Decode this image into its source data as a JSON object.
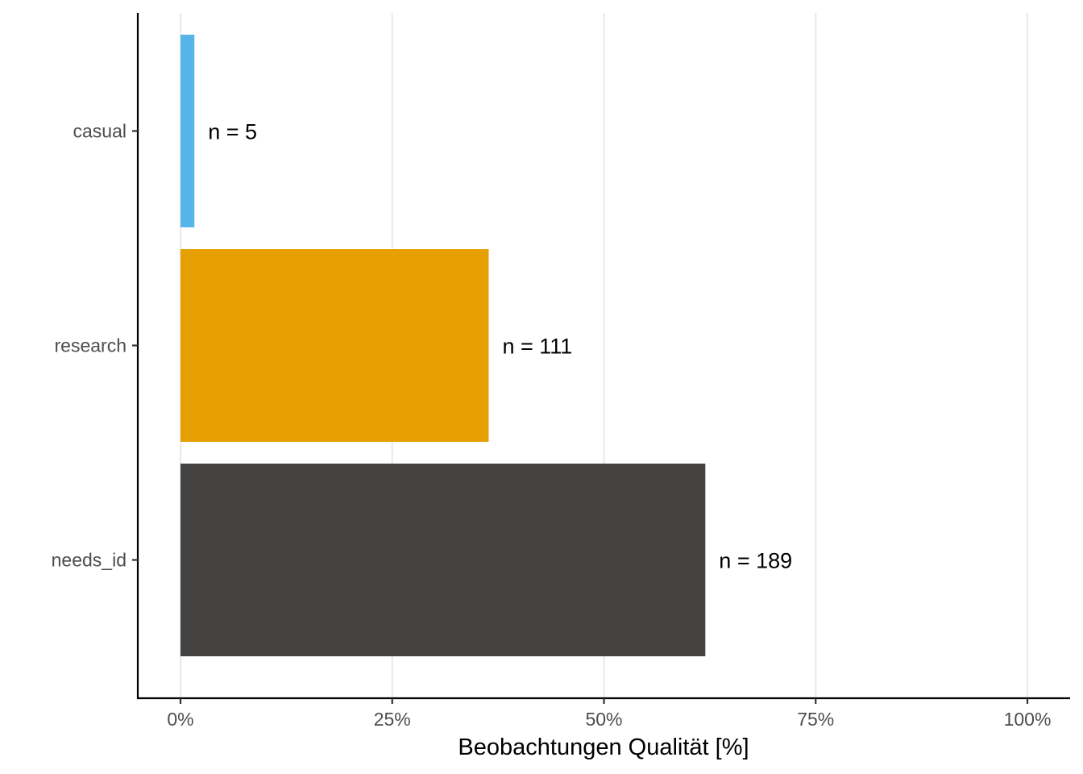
{
  "chart_data": {
    "type": "bar",
    "orientation": "horizontal",
    "title": "",
    "xlabel": "Beobachtungen Qualität [%]",
    "ylabel": "",
    "xlim": [
      0,
      100
    ],
    "x_ticks": [
      0,
      25,
      50,
      75,
      100
    ],
    "x_tick_labels": [
      "0%",
      "25%",
      "50%",
      "75%",
      "100%"
    ],
    "grid": {
      "vertical_major": true,
      "horizontal": false
    },
    "legend": "none",
    "categories": [
      "casual",
      "research",
      "needs_id"
    ],
    "values": [
      1.64,
      36.39,
      61.97
    ],
    "labels": [
      "n = 5",
      "n = 111",
      "n = 189"
    ],
    "colors": [
      "#56B4E9",
      "#E69F00",
      "#454341"
    ],
    "colors_meta": {
      "grid": "#ebebeb",
      "axis": "#000000"
    }
  }
}
